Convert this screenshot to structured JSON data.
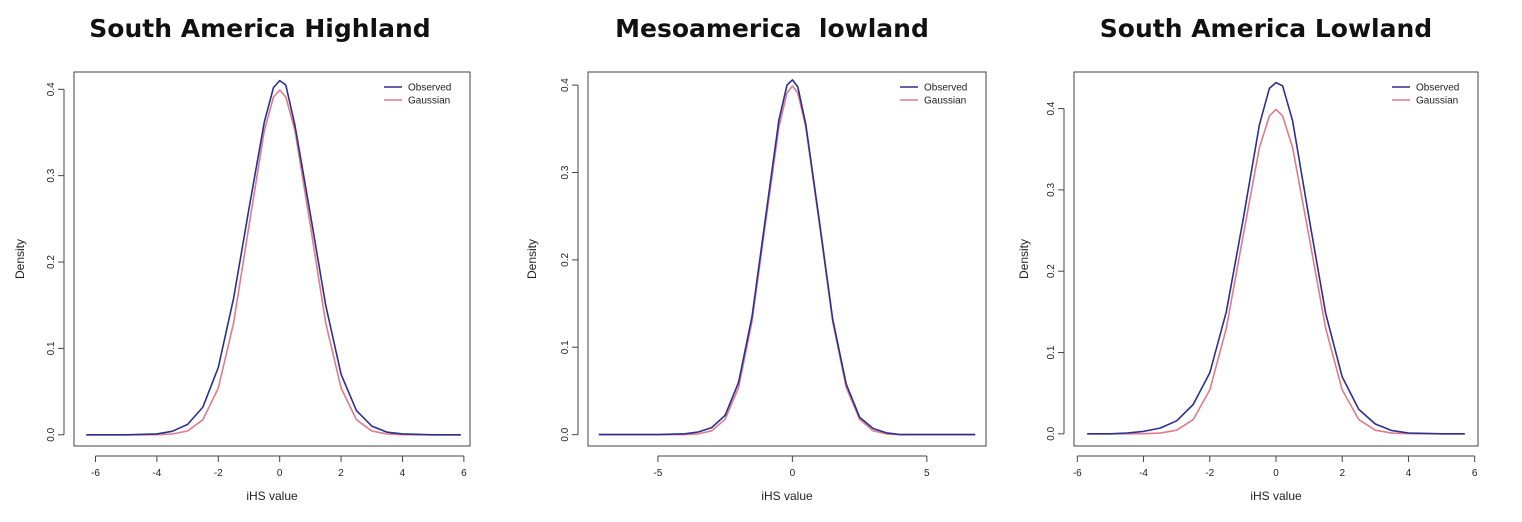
{
  "colors": {
    "observed": "#2b2f8f",
    "gaussian": "#e07b8a"
  },
  "chart_data": [
    {
      "type": "line",
      "title": "South America Highland",
      "xlabel": "iHS value",
      "ylabel": "Density",
      "xlim": [
        -6.7,
        6.2
      ],
      "ylim": [
        -0.013,
        0.42
      ],
      "xticks": [
        -6,
        -4,
        -2,
        0,
        2,
        4,
        6
      ],
      "xtick_labels": [
        "-6",
        "-4",
        "-2",
        "0",
        "2",
        "4",
        "6"
      ],
      "yticks": [
        0.0,
        0.1,
        0.2,
        0.3,
        0.4
      ],
      "ytick_labels": [
        "0.0",
        "0.1",
        "0.2",
        "0.3",
        "0.4"
      ],
      "grid": false,
      "legend_position": "top-right",
      "series": [
        {
          "name": "Observed",
          "color": "#2b2f8f",
          "x": [
            -6.3,
            -5,
            -4,
            -3.5,
            -3,
            -2.5,
            -2,
            -1.5,
            -1,
            -0.5,
            -0.2,
            0,
            0.2,
            0.5,
            1,
            1.5,
            2,
            2.5,
            3,
            3.5,
            4,
            5,
            5.9
          ],
          "y": [
            0.0,
            0.0,
            0.001,
            0.004,
            0.012,
            0.032,
            0.078,
            0.158,
            0.262,
            0.362,
            0.402,
            0.41,
            0.405,
            0.358,
            0.255,
            0.15,
            0.07,
            0.028,
            0.01,
            0.003,
            0.001,
            0.0,
            0.0
          ]
        },
        {
          "name": "Gaussian",
          "color": "#e07b8a",
          "x": [
            -6.3,
            -5,
            -4,
            -3.5,
            -3,
            -2.5,
            -2,
            -1.5,
            -1,
            -0.5,
            -0.2,
            0,
            0.2,
            0.5,
            1,
            1.5,
            2,
            2.5,
            3,
            3.5,
            4,
            5,
            5.9
          ],
          "y": [
            0.0,
            0.0,
            0.0001,
            0.0009,
            0.0044,
            0.0175,
            0.054,
            0.1295,
            0.242,
            0.352,
            0.391,
            0.399,
            0.391,
            0.352,
            0.242,
            0.1295,
            0.054,
            0.0175,
            0.0044,
            0.0009,
            0.0001,
            0.0,
            0.0
          ]
        }
      ]
    },
    {
      "type": "line",
      "title": "Mesoamerica  lowland",
      "xlabel": "iHS value",
      "ylabel": "Density",
      "xlim": [
        -7.6,
        7.2
      ],
      "ylim": [
        -0.013,
        0.415
      ],
      "xticks": [
        -5,
        0,
        5
      ],
      "xtick_labels": [
        "-5",
        "0",
        "5"
      ],
      "yticks": [
        0.0,
        0.1,
        0.2,
        0.3,
        0.4
      ],
      "ytick_labels": [
        "0.0",
        "0.1",
        "0.2",
        "0.3",
        "0.4"
      ],
      "grid": false,
      "legend_position": "top-right",
      "series": [
        {
          "name": "Observed",
          "color": "#2b2f8f",
          "x": [
            -7.2,
            -6,
            -5,
            -4,
            -3.5,
            -3,
            -2.5,
            -2,
            -1.5,
            -1,
            -0.5,
            -0.2,
            0,
            0.2,
            0.5,
            1,
            1.5,
            2,
            2.5,
            3,
            3.5,
            4,
            5,
            6,
            6.8
          ],
          "y": [
            0.0,
            0.0,
            0.0,
            0.001,
            0.003,
            0.008,
            0.022,
            0.06,
            0.135,
            0.248,
            0.36,
            0.4,
            0.406,
            0.398,
            0.355,
            0.245,
            0.132,
            0.058,
            0.02,
            0.007,
            0.002,
            0.0,
            0.0,
            0.0,
            0.0
          ]
        },
        {
          "name": "Gaussian",
          "color": "#e07b8a",
          "x": [
            -7.2,
            -6,
            -5,
            -4,
            -3.5,
            -3,
            -2.5,
            -2,
            -1.5,
            -1,
            -0.5,
            -0.2,
            0,
            0.2,
            0.5,
            1,
            1.5,
            2,
            2.5,
            3,
            3.5,
            4,
            5,
            6,
            6.8
          ],
          "y": [
            0.0,
            0.0,
            0.0,
            0.0001,
            0.0009,
            0.0044,
            0.0175,
            0.054,
            0.1295,
            0.242,
            0.352,
            0.391,
            0.399,
            0.391,
            0.352,
            0.242,
            0.1295,
            0.054,
            0.0175,
            0.0044,
            0.0009,
            0.0001,
            0.0,
            0.0,
            0.0
          ]
        }
      ]
    },
    {
      "type": "line",
      "title": "South America Lowland",
      "xlabel": "iHS value",
      "ylabel": "Density",
      "xlim": [
        -6.1,
        6.1
      ],
      "ylim": [
        -0.015,
        0.445
      ],
      "xticks": [
        -6,
        -4,
        -2,
        0,
        2,
        4,
        6
      ],
      "xtick_labels": [
        "-6",
        "-4",
        "-2",
        "0",
        "2",
        "4",
        "6"
      ],
      "yticks": [
        0.0,
        0.1,
        0.2,
        0.3,
        0.4
      ],
      "ytick_labels": [
        "0.0",
        "0.1",
        "0.2",
        "0.3",
        "0.4"
      ],
      "grid": false,
      "legend_position": "top-right",
      "series": [
        {
          "name": "Observed",
          "color": "#2b2f8f",
          "x": [
            -5.7,
            -5,
            -4.5,
            -4,
            -3.5,
            -3,
            -2.5,
            -2,
            -1.5,
            -1,
            -0.5,
            -0.2,
            0,
            0.2,
            0.5,
            1,
            1.5,
            2,
            2.5,
            3,
            3.5,
            4,
            5,
            5.7
          ],
          "y": [
            0.0,
            0.0,
            0.001,
            0.003,
            0.007,
            0.016,
            0.036,
            0.075,
            0.15,
            0.262,
            0.38,
            0.425,
            0.432,
            0.428,
            0.385,
            0.265,
            0.148,
            0.07,
            0.03,
            0.012,
            0.004,
            0.001,
            0.0,
            0.0
          ]
        },
        {
          "name": "Gaussian",
          "color": "#e07b8a",
          "x": [
            -5.7,
            -5,
            -4.5,
            -4,
            -3.5,
            -3,
            -2.5,
            -2,
            -1.5,
            -1,
            -0.5,
            -0.2,
            0,
            0.2,
            0.5,
            1,
            1.5,
            2,
            2.5,
            3,
            3.5,
            4,
            5,
            5.7
          ],
          "y": [
            0.0,
            0.0,
            0.0,
            0.0001,
            0.0009,
            0.0044,
            0.0175,
            0.054,
            0.1295,
            0.242,
            0.352,
            0.391,
            0.399,
            0.391,
            0.352,
            0.242,
            0.1295,
            0.054,
            0.0175,
            0.0044,
            0.0009,
            0.0001,
            0.0,
            0.0
          ]
        }
      ]
    }
  ]
}
